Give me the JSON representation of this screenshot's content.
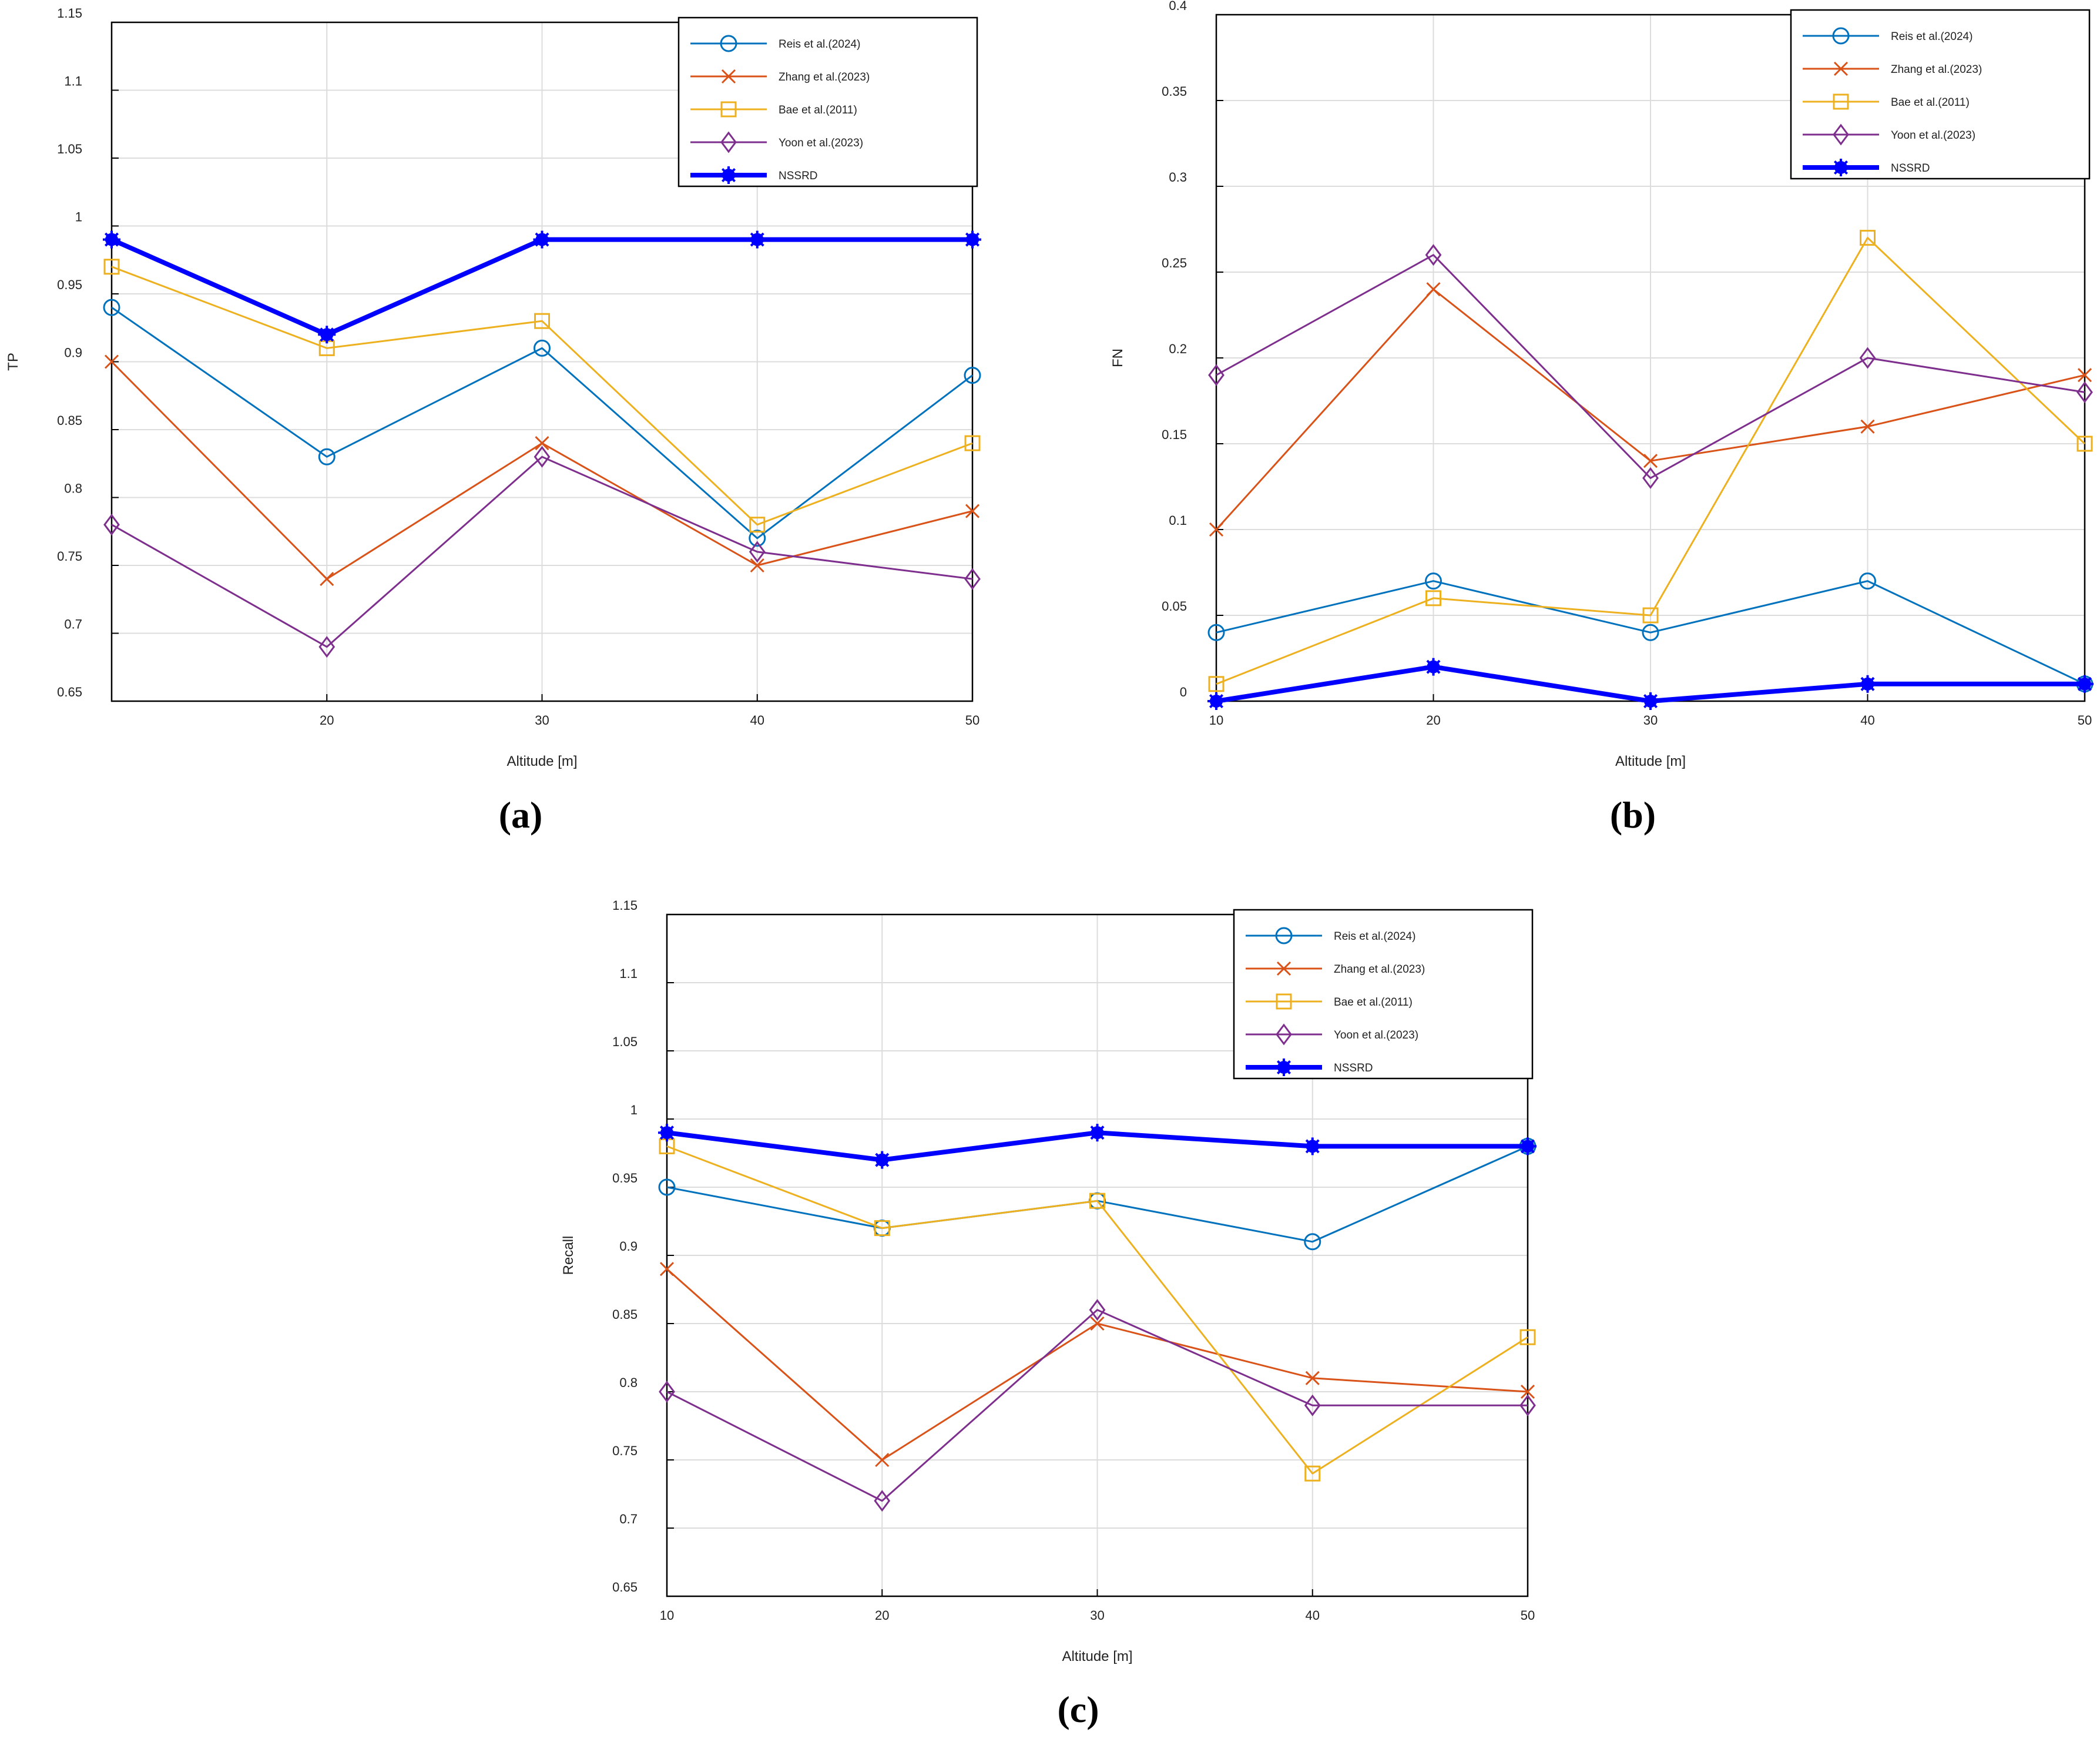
{
  "colors": {
    "reis": "#0072BD",
    "zhang": "#D95319",
    "bae": "#EDB120",
    "yoon": "#7E2F8E",
    "nssrd": "#0000FF",
    "grid": "#dcdcdc",
    "axis": "#000000"
  },
  "legend_labels": [
    "Reis et al.(2024)",
    "Zhang et al.(2023)",
    "Bae et al.(2011)",
    "Yoon et al.(2023)",
    "NSSRD"
  ],
  "chart_data": [
    {
      "id": "a",
      "type": "line",
      "panel_label": "(a)",
      "xlabel": "Altitude [m]",
      "ylabel": "TP",
      "xlim": [
        10,
        50
      ],
      "ylim": [
        0.65,
        1.15
      ],
      "xticks": [
        20,
        30,
        40,
        50
      ],
      "xtick_labels": [
        "20",
        "30",
        "40",
        "50"
      ],
      "yticks": [
        0.65,
        0.7,
        0.75,
        0.8,
        0.85,
        0.9,
        0.95,
        1,
        1.05,
        1.1,
        1.15
      ],
      "ytick_labels": [
        "0.65",
        "0.7",
        "0.75",
        "0.8",
        "0.85",
        "0.9",
        "0.95",
        "1",
        "1.05",
        "1.1",
        "1.15"
      ],
      "x": [
        10,
        20,
        30,
        40,
        50
      ],
      "series": [
        {
          "key": "reis",
          "name": "Reis et al.(2024)",
          "marker": "circle",
          "values": [
            0.94,
            0.83,
            0.91,
            0.77,
            0.89
          ]
        },
        {
          "key": "zhang",
          "name": "Zhang et al.(2023)",
          "marker": "x",
          "values": [
            0.9,
            0.74,
            0.84,
            0.75,
            0.79
          ]
        },
        {
          "key": "bae",
          "name": "Bae et al.(2011)",
          "marker": "square",
          "values": [
            0.97,
            0.91,
            0.93,
            0.78,
            0.84
          ]
        },
        {
          "key": "yoon",
          "name": "Yoon et al.(2023)",
          "marker": "diamond",
          "values": [
            0.78,
            0.69,
            0.83,
            0.76,
            0.74
          ]
        },
        {
          "key": "nssrd",
          "name": "NSSRD",
          "marker": "star",
          "values": [
            0.99,
            0.92,
            0.99,
            0.99,
            0.99
          ]
        }
      ],
      "legend_location": "top-right",
      "grid": true
    },
    {
      "id": "b",
      "type": "line",
      "panel_label": "(b)",
      "xlabel": "Altitude [m]",
      "ylabel": "FN",
      "xlim": [
        10,
        50
      ],
      "ylim": [
        0,
        0.4
      ],
      "xticks": [
        10,
        20,
        30,
        40,
        50
      ],
      "xtick_labels": [
        "10",
        "20",
        "30",
        "40",
        "50"
      ],
      "yticks": [
        0,
        0.05,
        0.1,
        0.15,
        0.2,
        0.25,
        0.3,
        0.35,
        0.4
      ],
      "ytick_labels": [
        "0",
        "0.05",
        "0.1",
        "0.15",
        "0.2",
        "0.25",
        "0.3",
        "0.35",
        "0.4"
      ],
      "x": [
        10,
        20,
        30,
        40,
        50
      ],
      "series": [
        {
          "key": "reis",
          "name": "Reis et al.(2024)",
          "marker": "circle",
          "values": [
            0.04,
            0.07,
            0.04,
            0.07,
            0.01
          ]
        },
        {
          "key": "zhang",
          "name": "Zhang et al.(2023)",
          "marker": "x",
          "values": [
            0.1,
            0.24,
            0.14,
            0.16,
            0.19
          ]
        },
        {
          "key": "bae",
          "name": "Bae et al.(2011)",
          "marker": "square",
          "values": [
            0.01,
            0.06,
            0.05,
            0.27,
            0.15
          ]
        },
        {
          "key": "yoon",
          "name": "Yoon et al.(2023)",
          "marker": "diamond",
          "values": [
            0.19,
            0.26,
            0.13,
            0.2,
            0.18
          ]
        },
        {
          "key": "nssrd",
          "name": "NSSRD",
          "marker": "star",
          "values": [
            0.0,
            0.02,
            0.0,
            0.01,
            0.01
          ]
        }
      ],
      "legend_location": "top-right",
      "grid": true
    },
    {
      "id": "c",
      "type": "line",
      "panel_label": "(c)",
      "xlabel": "Altitude [m]",
      "ylabel": "Recall",
      "xlim": [
        10,
        50
      ],
      "ylim": [
        0.65,
        1.15
      ],
      "xticks": [
        10,
        20,
        30,
        40,
        50
      ],
      "xtick_labels": [
        "10",
        "20",
        "30",
        "40",
        "50"
      ],
      "yticks": [
        0.65,
        0.7,
        0.75,
        0.8,
        0.85,
        0.9,
        0.95,
        1,
        1.05,
        1.1,
        1.15
      ],
      "ytick_labels": [
        "0.65",
        "0.7",
        "0.75",
        "0.8",
        "0.85",
        "0.9",
        "0.95",
        "1",
        "1.05",
        "1.1",
        "1.15"
      ],
      "x": [
        10,
        20,
        30,
        40,
        50
      ],
      "series": [
        {
          "key": "reis",
          "name": "Reis et al.(2024)",
          "marker": "circle",
          "values": [
            0.95,
            0.92,
            0.94,
            0.91,
            0.98
          ]
        },
        {
          "key": "zhang",
          "name": "Zhang et al.(2023)",
          "marker": "x",
          "values": [
            0.89,
            0.75,
            0.85,
            0.81,
            0.8
          ]
        },
        {
          "key": "bae",
          "name": "Bae et al.(2011)",
          "marker": "square",
          "values": [
            0.98,
            0.92,
            0.94,
            0.74,
            0.84
          ]
        },
        {
          "key": "yoon",
          "name": "Yoon et al.(2023)",
          "marker": "diamond",
          "values": [
            0.8,
            0.72,
            0.86,
            0.79,
            0.79
          ]
        },
        {
          "key": "nssrd",
          "name": "NSSRD",
          "marker": "star",
          "values": [
            0.99,
            0.97,
            0.99,
            0.98,
            0.98
          ]
        }
      ],
      "legend_location": "top-right",
      "grid": true
    }
  ]
}
